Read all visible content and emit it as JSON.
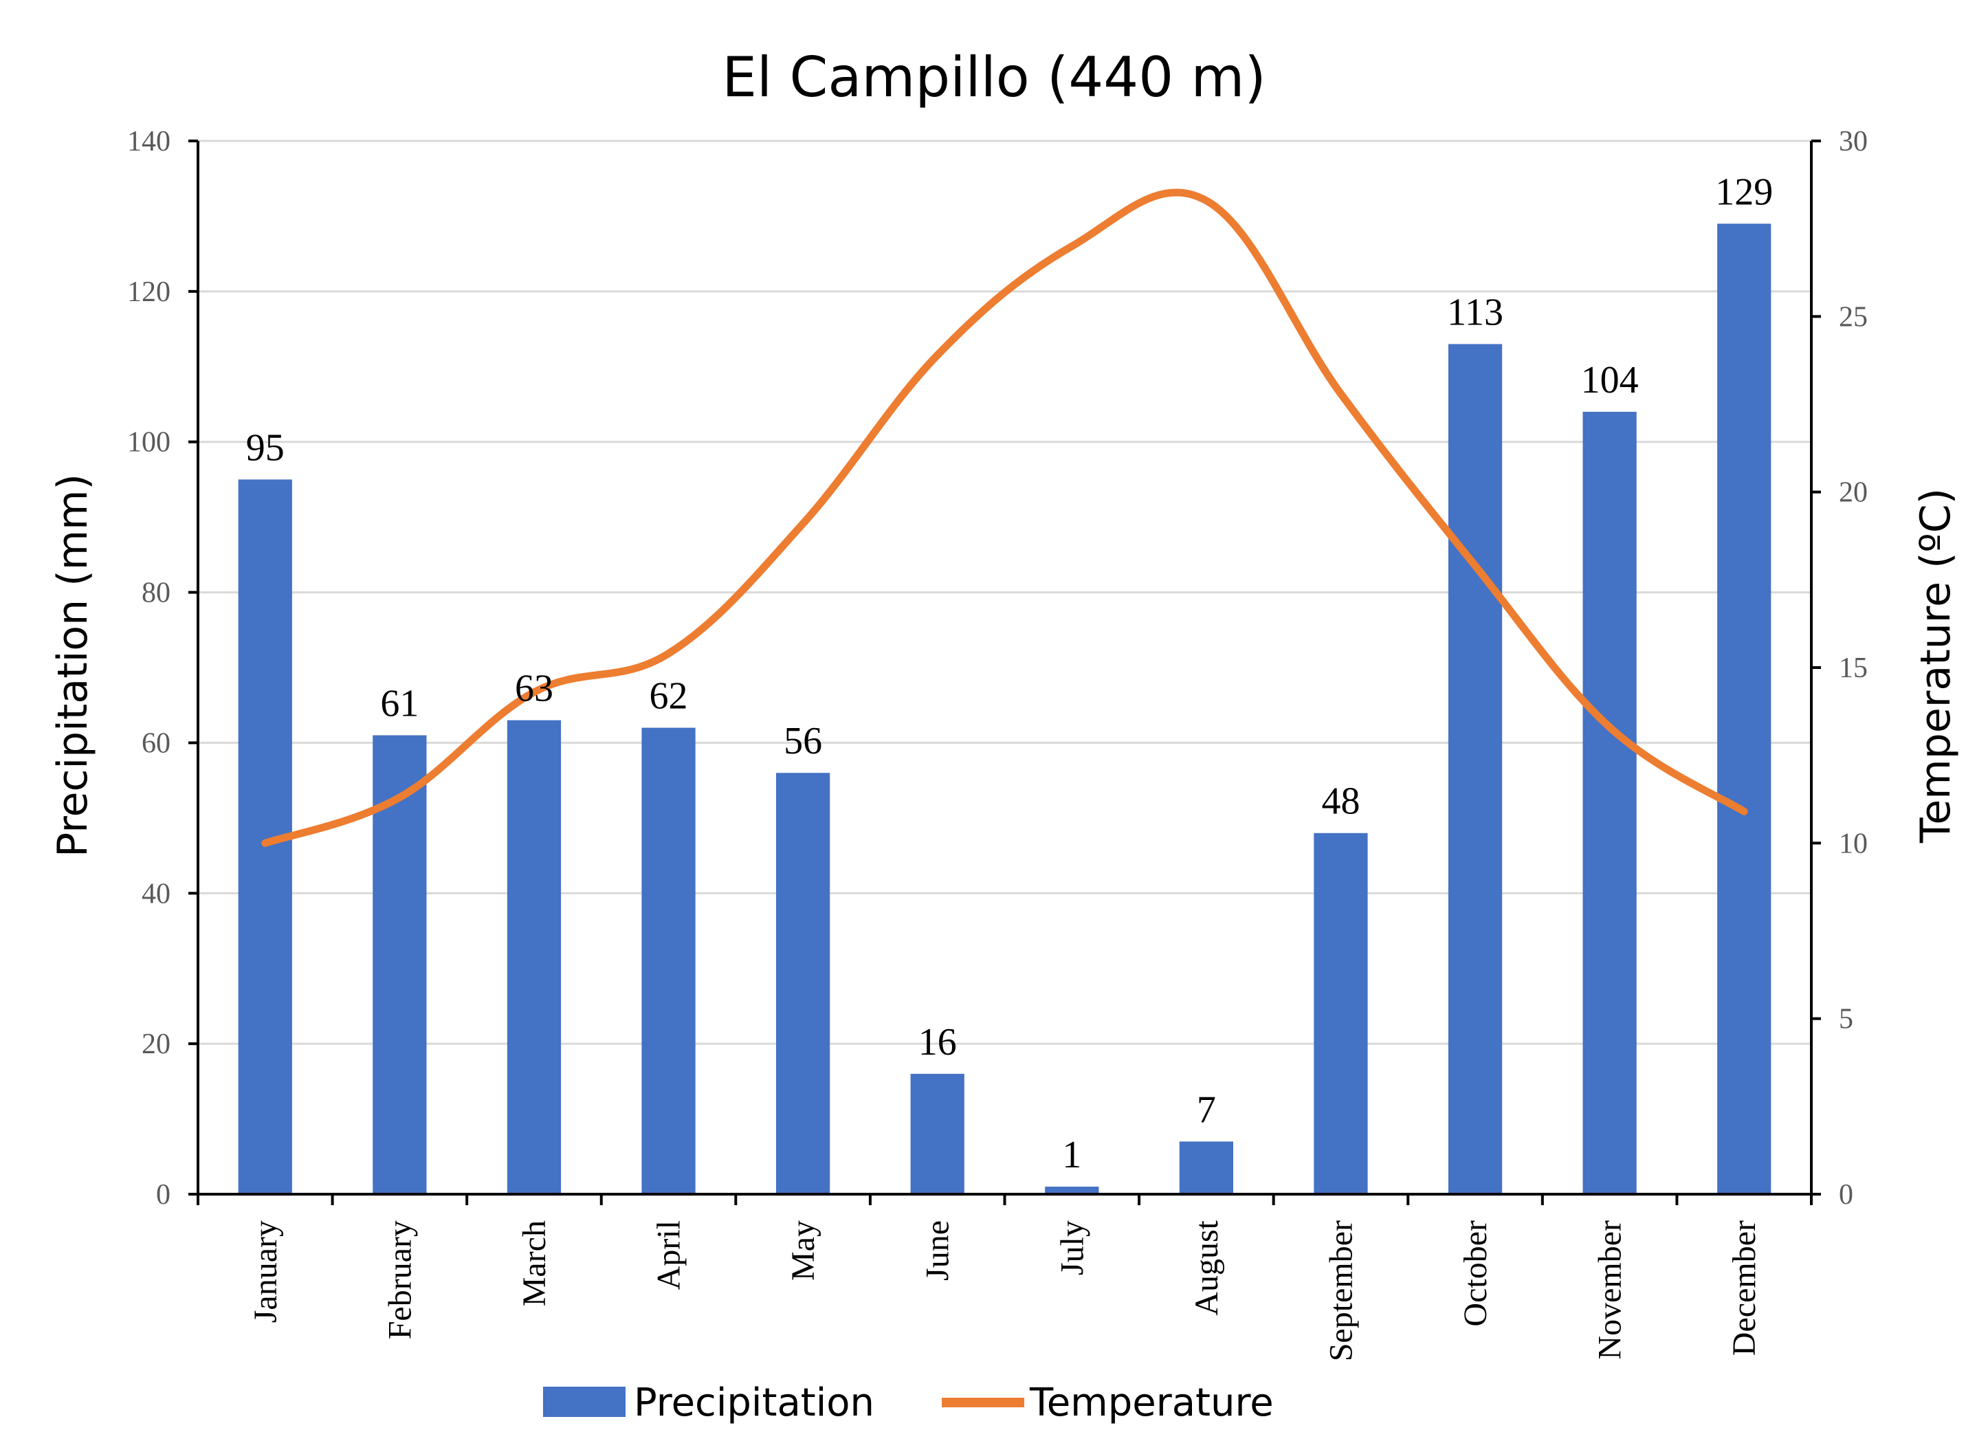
{
  "chart_data": {
    "type": "bar",
    "title": "El Campillo (440 m)",
    "ylabel": "Precipitation (mm)",
    "y2label": "Temperature (ºC)",
    "ylim": [
      0,
      140
    ],
    "y2lim": [
      0,
      30
    ],
    "yticks": [
      0,
      20,
      40,
      60,
      80,
      100,
      120,
      140
    ],
    "y2ticks": [
      0,
      5,
      10,
      15,
      20,
      25,
      30
    ],
    "grid": true,
    "legend": "bottom",
    "categories": [
      "January",
      "February",
      "March",
      "April",
      "May",
      "June",
      "July",
      "August",
      "September",
      "October",
      "November",
      "December"
    ],
    "series": [
      {
        "name": "Precipitation",
        "type": "bar",
        "axis": "left",
        "color": "#4472C4",
        "values": [
          95,
          61,
          63,
          62,
          56,
          16,
          1,
          7,
          48,
          113,
          104,
          129
        ],
        "labels": [
          "95",
          "61",
          "63",
          "62",
          "56",
          "16",
          "1",
          "7",
          "48",
          "113",
          "104",
          "129"
        ]
      },
      {
        "name": "Temperature",
        "type": "line",
        "axis": "right",
        "color": "#ED7D31",
        "values": [
          10.0,
          11.3,
          14.3,
          15.4,
          19.1,
          23.9,
          27.0,
          28.3,
          22.8,
          17.9,
          13.3,
          10.9
        ]
      }
    ]
  }
}
